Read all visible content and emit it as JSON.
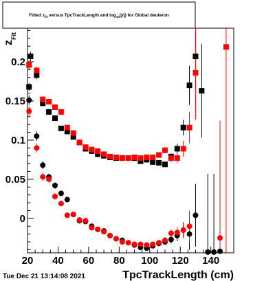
{
  "chart_data": {
    "type": "scatter",
    "title": "Fitted z_fit versus TpcTrackLength and log10(j/j) for Global deuteron",
    "title_parts": {
      "pre": "Fitted  z",
      "sub1": "fit",
      "mid": "  versus TpcTrackLength and log",
      "sub2": "10",
      "post": "(j/j) for Global deuteron"
    },
    "xlabel": "TpcTrackLength (cm)",
    "ylabel": "z",
    "ylabel_sub": "Fit",
    "xlim": [
      20,
      155
    ],
    "ylim": [
      -0.044,
      0.243
    ],
    "x_ticks": [
      20,
      40,
      60,
      80,
      100,
      120,
      140
    ],
    "y_ticks": [
      0,
      0.05,
      0.1,
      0.15,
      0.2
    ],
    "x_tick_labels": [
      "20",
      "40",
      "60",
      "80",
      "100",
      "120",
      "140"
    ],
    "y_tick_labels": [
      "0",
      "0.05",
      "0.1",
      "0.15",
      "0.2"
    ],
    "grid": false,
    "series": [
      {
        "color": "#000000",
        "marker": "square",
        "points": [
          [
            21,
            0.168,
            0.005
          ],
          [
            22,
            0.207,
            0.006
          ],
          [
            26,
            0.183,
            0.005
          ],
          [
            30,
            0.147,
            0.004
          ],
          [
            34,
            0.136,
            0.003
          ],
          [
            38,
            0.128,
            0.003
          ],
          [
            42,
            0.115,
            0.002
          ],
          [
            46,
            0.111,
            0.002
          ],
          [
            50,
            0.104,
            0.002
          ],
          [
            54,
            0.097,
            0.002
          ],
          [
            58,
            0.089,
            0.002
          ],
          [
            62,
            0.086,
            0.002
          ],
          [
            66,
            0.082,
            0.002
          ],
          [
            70,
            0.08,
            0.002
          ],
          [
            74,
            0.078,
            0.002
          ],
          [
            78,
            0.077,
            0.002
          ],
          [
            82,
            0.077,
            0.002
          ],
          [
            86,
            0.077,
            0.002
          ],
          [
            90,
            0.077,
            0.002
          ],
          [
            94,
            0.073,
            0.002
          ],
          [
            98,
            0.075,
            0.002
          ],
          [
            102,
            0.072,
            0.002
          ],
          [
            106,
            0.071,
            0.002
          ],
          [
            110,
            0.069,
            0.003
          ],
          [
            114,
            0.079,
            0.004
          ],
          [
            118,
            0.089,
            0.006
          ],
          [
            122,
            0.116,
            0.01
          ],
          [
            126,
            0.17,
            0.025
          ],
          [
            130,
            0.207,
            0.04
          ],
          [
            134,
            0.163,
            0.06
          ]
        ]
      },
      {
        "color": "#ff0000",
        "marker": "square",
        "points": [
          [
            21,
            0.196,
            0.006
          ],
          [
            26,
            0.189,
            0.005
          ],
          [
            30,
            0.152,
            0.004
          ],
          [
            34,
            0.149,
            0.003
          ],
          [
            38,
            0.142,
            0.003
          ],
          [
            42,
            0.136,
            0.003
          ],
          [
            46,
            0.116,
            0.002
          ],
          [
            50,
            0.109,
            0.002
          ],
          [
            54,
            0.097,
            0.002
          ],
          [
            58,
            0.091,
            0.002
          ],
          [
            62,
            0.088,
            0.002
          ],
          [
            66,
            0.086,
            0.002
          ],
          [
            70,
            0.082,
            0.002
          ],
          [
            74,
            0.079,
            0.002
          ],
          [
            78,
            0.078,
            0.002
          ],
          [
            82,
            0.077,
            0.002
          ],
          [
            86,
            0.077,
            0.002
          ],
          [
            90,
            0.078,
            0.002
          ],
          [
            94,
            0.077,
            0.002
          ],
          [
            98,
            0.078,
            0.002
          ],
          [
            102,
            0.078,
            0.002
          ],
          [
            106,
            0.081,
            0.003
          ],
          [
            110,
            0.087,
            0.004
          ],
          [
            114,
            0.077,
            0.005
          ],
          [
            118,
            0.077,
            0.006
          ],
          [
            122,
            0.089,
            0.01
          ],
          [
            126,
            0.116,
            0.02
          ],
          [
            130,
            0.186,
            0.06
          ],
          [
            150,
            0.219,
            0.3
          ]
        ]
      },
      {
        "color": "#000000",
        "marker": "circle",
        "points": [
          [
            21,
            0.151,
            0.006
          ],
          [
            26,
            0.105,
            0.006
          ],
          [
            30,
            0.068,
            0.005
          ],
          [
            34,
            0.053,
            0.004
          ],
          [
            38,
            0.042,
            0.004
          ],
          [
            42,
            0.032,
            0.003
          ],
          [
            46,
            0.024,
            0.003
          ],
          [
            50,
            0.005,
            0.002
          ],
          [
            54,
            -0.003,
            0.002
          ],
          [
            58,
            -0.004,
            0.002
          ],
          [
            62,
            -0.01,
            0.002
          ],
          [
            66,
            -0.014,
            0.002
          ],
          [
            70,
            -0.016,
            0.002
          ],
          [
            74,
            -0.022,
            0.002
          ],
          [
            78,
            -0.026,
            0.002
          ],
          [
            82,
            -0.028,
            0.002
          ],
          [
            86,
            -0.031,
            0.002
          ],
          [
            90,
            -0.034,
            0.002
          ],
          [
            94,
            -0.037,
            0.002
          ],
          [
            98,
            -0.038,
            0.003
          ],
          [
            102,
            -0.035,
            0.003
          ],
          [
            106,
            -0.032,
            0.003
          ],
          [
            110,
            -0.03,
            0.004
          ],
          [
            114,
            -0.027,
            0.005
          ],
          [
            118,
            -0.022,
            0.007
          ],
          [
            122,
            -0.015,
            0.01
          ],
          [
            126,
            -0.02,
            0.02
          ],
          [
            130,
            0.004,
            0.04
          ],
          [
            138,
            -0.043,
            0.1
          ],
          [
            142,
            -0.043,
            0.1
          ],
          [
            146,
            -0.042,
            0.12
          ]
        ]
      },
      {
        "color": "#ff0000",
        "marker": "circle",
        "points": [
          [
            21,
            0.137,
            0.006
          ],
          [
            26,
            0.09,
            0.006
          ],
          [
            30,
            0.053,
            0.005
          ],
          [
            34,
            0.05,
            0.004
          ],
          [
            38,
            0.028,
            0.004
          ],
          [
            42,
            0.019,
            0.003
          ],
          [
            46,
            0.004,
            0.003
          ],
          [
            50,
            0.005,
            0.002
          ],
          [
            54,
            -0.002,
            0.002
          ],
          [
            58,
            -0.003,
            0.002
          ],
          [
            62,
            -0.012,
            0.002
          ],
          [
            66,
            -0.014,
            0.002
          ],
          [
            70,
            -0.017,
            0.002
          ],
          [
            74,
            -0.022,
            0.002
          ],
          [
            78,
            -0.026,
            0.002
          ],
          [
            82,
            -0.03,
            0.002
          ],
          [
            86,
            -0.031,
            0.002
          ],
          [
            90,
            -0.033,
            0.002
          ],
          [
            94,
            -0.033,
            0.002
          ],
          [
            98,
            -0.034,
            0.003
          ],
          [
            102,
            -0.033,
            0.003
          ],
          [
            106,
            -0.031,
            0.003
          ],
          [
            110,
            -0.028,
            0.004
          ],
          [
            114,
            -0.019,
            0.005
          ],
          [
            118,
            -0.018,
            0.007
          ],
          [
            122,
            -0.015,
            0.009
          ],
          [
            126,
            -0.01,
            0.02
          ],
          [
            146,
            -0.025,
            0.15
          ]
        ]
      }
    ]
  },
  "footer": {
    "timestamp": "Tue Dec 21 13:14:08 2021"
  }
}
